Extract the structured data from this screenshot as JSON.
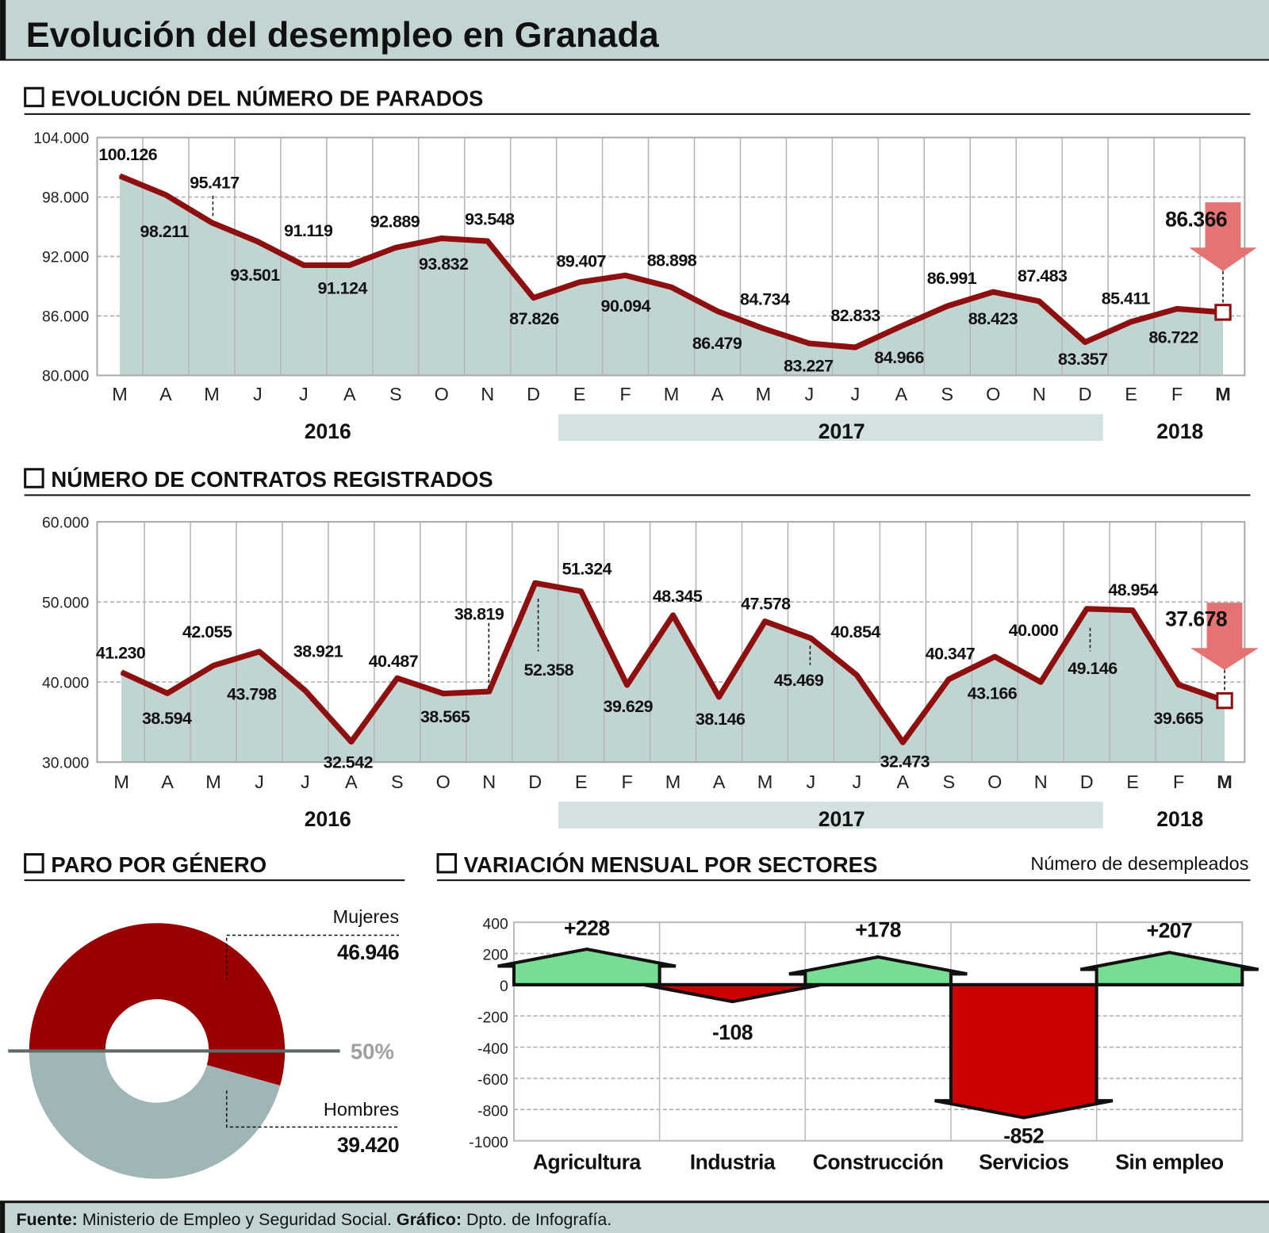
{
  "title": "Evolución del desempleo en Granada",
  "sections": {
    "parados": "EVOLUCIÓN DEL NÚMERO DE PARADOS",
    "contratos": "NÚMERO DE CONTRATOS REGISTRADOS",
    "genero": "PARO POR GÉNERO",
    "sectores": "VARIACIÓN MENSUAL POR SECTORES",
    "sectores_unit": "Número de desempleados"
  },
  "footer": {
    "source_label": "Fuente:",
    "source": " Ministerio de Empleo y Seguridad Social. ",
    "graphic_label": "Gráfico:",
    "graphic": " Dpto. de Infografía."
  },
  "colors": {
    "header_bg": "#c2d5d3",
    "area_fill": "#c0d4d2",
    "line": "#8e0f0f",
    "arrow_down": "#e57373",
    "women": "#990000",
    "men": "#a0b5b6",
    "bar_positive": "#77dd92",
    "bar_negative": "#cc0000",
    "year_band": "#d3e2e0"
  },
  "chart_data": [
    {
      "type": "area",
      "title": "EVOLUCIÓN DEL NÚMERO DE PARADOS",
      "categories": [
        "M",
        "A",
        "M",
        "J",
        "J",
        "A",
        "S",
        "O",
        "N",
        "D",
        "E",
        "F",
        "M",
        "A",
        "M",
        "J",
        "J",
        "A",
        "S",
        "O",
        "N",
        "D",
        "E",
        "F",
        "M"
      ],
      "years": [
        "2016",
        "2017",
        "2018"
      ],
      "values": [
        100126,
        98211,
        95417,
        93501,
        91119,
        91124,
        92889,
        93832,
        93548,
        87826,
        89407,
        90094,
        88898,
        86479,
        84734,
        83227,
        82833,
        84966,
        86991,
        88423,
        87483,
        83357,
        85411,
        86722,
        86366
      ],
      "ylim": [
        80000,
        104000
      ],
      "yticks": [
        "104.000",
        "98.000",
        "92.000",
        "86.000",
        "80.000"
      ],
      "grid": true,
      "highlight_last": "down"
    },
    {
      "type": "area",
      "title": "NÚMERO DE CONTRATOS REGISTRADOS",
      "categories": [
        "M",
        "A",
        "M",
        "J",
        "J",
        "A",
        "S",
        "O",
        "N",
        "D",
        "E",
        "F",
        "M",
        "A",
        "M",
        "J",
        "J",
        "A",
        "S",
        "O",
        "N",
        "D",
        "E",
        "F",
        "M"
      ],
      "years": [
        "2016",
        "2017",
        "2018"
      ],
      "values": [
        41230,
        38594,
        42055,
        43798,
        38921,
        32542,
        40487,
        38565,
        38819,
        52358,
        51324,
        39629,
        48345,
        38146,
        47578,
        45469,
        40854,
        32473,
        40347,
        43166,
        40000,
        49146,
        48954,
        39665,
        37678
      ],
      "ylim": [
        30000,
        60000
      ],
      "yticks": [
        "60.000",
        "50.000",
        "40.000",
        "30.000"
      ],
      "grid": true,
      "highlight_last": "down"
    },
    {
      "type": "pie",
      "title": "PARO POR GÉNERO",
      "slices": [
        {
          "label": "Mujeres",
          "value": 46946
        },
        {
          "label": "Hombres",
          "value": 39420
        }
      ],
      "reference_label": "50%"
    },
    {
      "type": "bar",
      "title": "VARIACIÓN MENSUAL POR SECTORES",
      "ylabel": "Número de desempleados",
      "categories": [
        "Agricultura",
        "Industria",
        "Construcción",
        "Servicios",
        "Sin empleo"
      ],
      "values": [
        228,
        -108,
        178,
        -852,
        207
      ],
      "value_labels": [
        "+228",
        "-108",
        "+178",
        "-852",
        "+207"
      ],
      "ylim": [
        -1000,
        400
      ],
      "yticks": [
        "400",
        "200",
        "0",
        "-200",
        "-400",
        "-600",
        "-800",
        "-1000"
      ],
      "grid": true
    }
  ]
}
